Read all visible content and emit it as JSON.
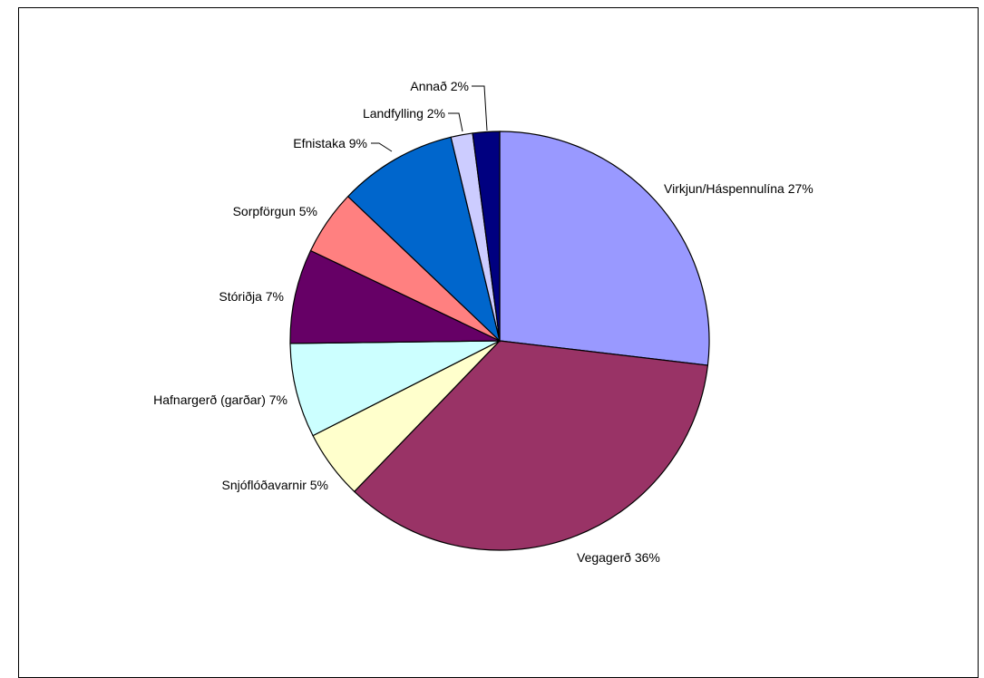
{
  "chart_data": {
    "type": "pie",
    "title": "",
    "start": "12 o'clock",
    "direction": "clockwise",
    "legend": "none",
    "slices": [
      {
        "label": "Virkjun/Háspennulína",
        "pct_label": "27%",
        "value": 27.3,
        "color": "#9999FF"
      },
      {
        "label": "Vegagerð",
        "pct_label": "36%",
        "value": 35.9,
        "color": "#993366"
      },
      {
        "label": "Snjóflóðavarnir",
        "pct_label": "5%",
        "value": 5.4,
        "color": "#FFFFCC"
      },
      {
        "label": "Hafnargerð (garðar)",
        "pct_label": "7%",
        "value": 7.4,
        "color": "#CCFFFF"
      },
      {
        "label": "Stóriðja",
        "pct_label": "7%",
        "value": 7.4,
        "color": "#660066"
      },
      {
        "label": "Sorpförgun",
        "pct_label": "5%",
        "value": 5.1,
        "color": "#FF8080"
      },
      {
        "label": "Efnistaka",
        "pct_label": "9%",
        "value": 9.3,
        "color": "#0066CC"
      },
      {
        "label": "Landfylling",
        "pct_label": "2%",
        "value": 1.7,
        "color": "#CCCCFF"
      },
      {
        "label": "Annað",
        "pct_label": "2%",
        "value": 2.1,
        "color": "#000080"
      }
    ]
  }
}
